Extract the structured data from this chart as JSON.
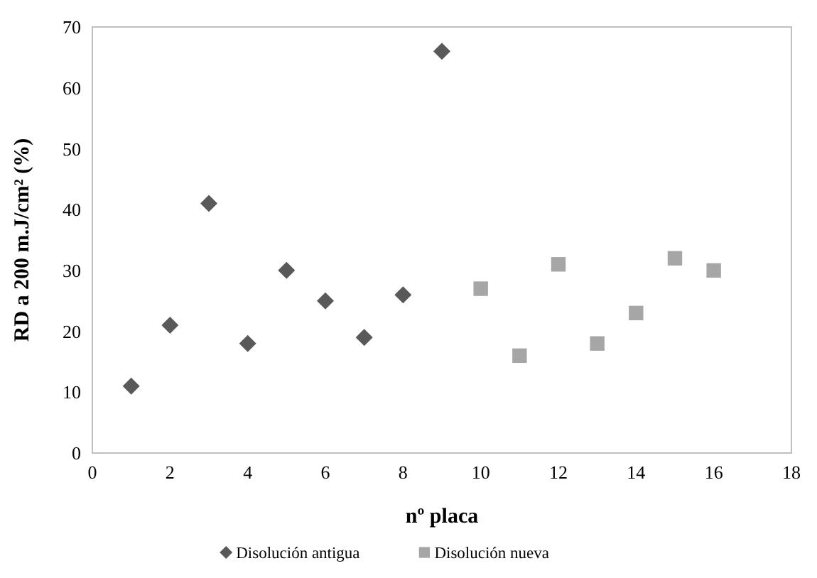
{
  "chart_data": {
    "type": "scatter",
    "xlabel": "nº placa",
    "ylabel": "RD a 200 m.J/cm² (%)",
    "xlim": [
      0,
      18
    ],
    "xticks": [
      0,
      2,
      4,
      6,
      8,
      10,
      12,
      14,
      16,
      18
    ],
    "ylim": [
      0,
      70
    ],
    "yticks": [
      0,
      10,
      20,
      30,
      40,
      50,
      60,
      70
    ],
    "grid": false,
    "legend": "bottom",
    "series": [
      {
        "name": "Disolución antigua",
        "color": "#595959",
        "marker": "diamond",
        "x": [
          1,
          2,
          3,
          4,
          5,
          6,
          7,
          8,
          9
        ],
        "values": [
          11,
          21,
          41,
          18,
          30,
          25,
          19,
          26,
          66
        ]
      },
      {
        "name": "Disolución nueva",
        "color": "#a6a6a6",
        "marker": "square",
        "x": [
          10,
          11,
          12,
          13,
          14,
          15,
          16
        ],
        "values": [
          27,
          16,
          31,
          18,
          23,
          32,
          30
        ]
      }
    ]
  }
}
